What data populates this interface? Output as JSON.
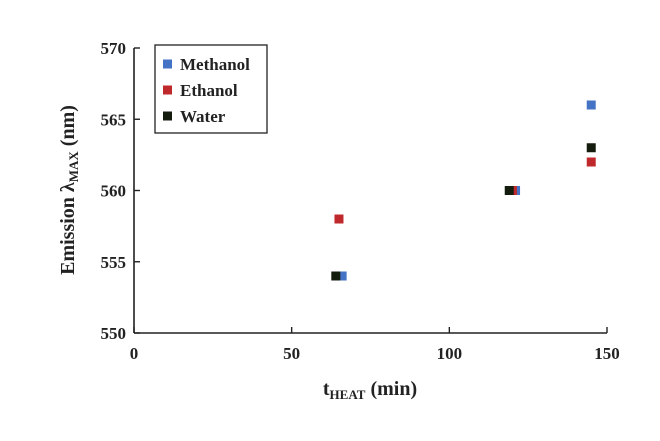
{
  "chart_data": {
    "type": "scatter",
    "title": "",
    "xlabel": {
      "main": "t",
      "sub": "HEAT",
      "suffix": " (min)"
    },
    "ylabel": {
      "main": "Emission λ",
      "sub": "MAX",
      "suffix": " (nm)"
    },
    "xlim": [
      0,
      150
    ],
    "ylim": [
      550,
      570
    ],
    "xticks": [
      0,
      50,
      100,
      150
    ],
    "yticks": [
      550,
      555,
      560,
      565,
      570
    ],
    "grid": false,
    "legend": "top-left",
    "series": [
      {
        "name": "Methanol",
        "color": "#4472C4",
        "x": [
          66,
          121,
          145
        ],
        "y": [
          554,
          560,
          566
        ]
      },
      {
        "name": "Ethanol",
        "color": "#C0292B",
        "x": [
          65,
          120,
          145
        ],
        "y": [
          558,
          560,
          562
        ]
      },
      {
        "name": "Water",
        "color": "#141C0E",
        "x": [
          64,
          119,
          145
        ],
        "y": [
          554,
          560,
          563
        ]
      }
    ]
  }
}
